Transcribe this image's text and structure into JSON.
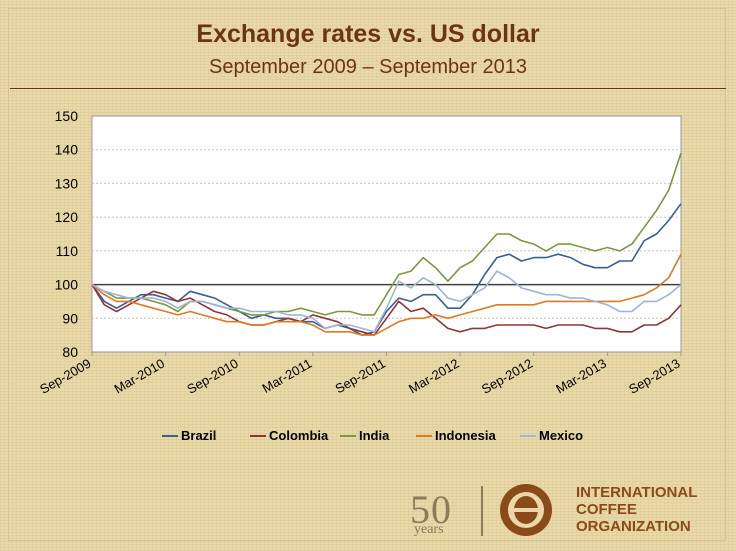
{
  "header": {
    "title": "Exchange rates vs. US dollar",
    "subtitle": "September 2009 – September 2013"
  },
  "logo": {
    "anniversary_number": "50",
    "anniversary_word": "years",
    "org_line1": "INTERNATIONAL",
    "org_line2": "COFFEE",
    "org_line3": "ORGANIZATION",
    "icon": "coffee-bean-icon"
  },
  "colors": {
    "Brazil": "#3a5f93",
    "Colombia": "#8e3637",
    "India": "#7a9a3e",
    "Indonesia": "#e07a22",
    "Mexico": "#9fb4d6",
    "title": "#6b3512"
  },
  "chart_data": {
    "type": "line",
    "ylim": [
      80,
      150
    ],
    "yticks": [
      80,
      90,
      100,
      110,
      120,
      130,
      140,
      150
    ],
    "xticks": [
      "Sep-2009",
      "Mar-2010",
      "Sep-2010",
      "Mar-2011",
      "Sep-2011",
      "Mar-2012",
      "Sep-2012",
      "Mar-2013",
      "Sep-2013"
    ],
    "reference_line": 100,
    "grid": true,
    "legend_position": "bottom",
    "x": [
      "Sep-2009",
      "Oct-2009",
      "Nov-2009",
      "Dec-2009",
      "Jan-2010",
      "Feb-2010",
      "Mar-2010",
      "Apr-2010",
      "May-2010",
      "Jun-2010",
      "Jul-2010",
      "Aug-2010",
      "Sep-2010",
      "Oct-2010",
      "Nov-2010",
      "Dec-2010",
      "Jan-2011",
      "Feb-2011",
      "Mar-2011",
      "Apr-2011",
      "May-2011",
      "Jun-2011",
      "Jul-2011",
      "Aug-2011",
      "Sep-2011",
      "Oct-2011",
      "Nov-2011",
      "Dec-2011",
      "Jan-2012",
      "Feb-2012",
      "Mar-2012",
      "Apr-2012",
      "May-2012",
      "Jun-2012",
      "Jul-2012",
      "Aug-2012",
      "Sep-2012",
      "Oct-2012",
      "Nov-2012",
      "Dec-2012",
      "Jan-2013",
      "Feb-2013",
      "Mar-2013",
      "Apr-2013",
      "May-2013",
      "Jun-2013",
      "Jul-2013",
      "Aug-2013",
      "Sep-2013"
    ],
    "series": [
      {
        "name": "Brazil",
        "values": [
          100,
          95,
          93,
          95,
          97,
          97,
          96,
          95,
          98,
          97,
          96,
          94,
          92,
          90,
          91,
          90,
          90,
          89,
          89,
          87,
          88,
          87,
          85,
          86,
          92,
          96,
          95,
          97,
          97,
          93,
          93,
          97,
          103,
          108,
          109,
          107,
          108,
          108,
          109,
          108,
          106,
          105,
          105,
          107,
          107,
          113,
          115,
          119,
          124
        ]
      },
      {
        "name": "Colombia",
        "values": [
          100,
          94,
          92,
          94,
          96,
          98,
          97,
          95,
          96,
          94,
          92,
          91,
          89,
          88,
          88,
          89,
          90,
          89,
          91,
          90,
          89,
          87,
          86,
          85,
          90,
          95,
          92,
          93,
          90,
          87,
          86,
          87,
          87,
          88,
          88,
          88,
          88,
          87,
          88,
          88,
          88,
          87,
          87,
          86,
          86,
          88,
          88,
          90,
          94
        ]
      },
      {
        "name": "India",
        "values": [
          100,
          98,
          96,
          96,
          96,
          95,
          94,
          92,
          95,
          95,
          94,
          93,
          92,
          91,
          91,
          92,
          92,
          93,
          92,
          91,
          92,
          92,
          91,
          91,
          97,
          103,
          104,
          108,
          105,
          101,
          105,
          107,
          111,
          115,
          115,
          113,
          112,
          110,
          112,
          112,
          111,
          110,
          111,
          110,
          112,
          117,
          122,
          128,
          139
        ]
      },
      {
        "name": "Indonesia",
        "values": [
          100,
          97,
          95,
          95,
          94,
          93,
          92,
          91,
          92,
          91,
          90,
          89,
          89,
          88,
          88,
          89,
          89,
          89,
          88,
          86,
          86,
          86,
          85,
          85,
          87,
          89,
          90,
          90,
          91,
          90,
          91,
          92,
          93,
          94,
          94,
          94,
          94,
          95,
          95,
          95,
          95,
          95,
          95,
          95,
          96,
          97,
          99,
          102,
          109
        ]
      },
      {
        "name": "Mexico",
        "values": [
          100,
          98,
          97,
          96,
          96,
          96,
          95,
          93,
          95,
          95,
          94,
          93,
          93,
          92,
          92,
          92,
          91,
          91,
          90,
          87,
          88,
          88,
          87,
          86,
          93,
          101,
          99,
          102,
          100,
          96,
          95,
          97,
          99,
          104,
          102,
          99,
          98,
          97,
          97,
          96,
          96,
          95,
          94,
          92,
          92,
          95,
          95,
          97,
          100
        ]
      }
    ]
  }
}
